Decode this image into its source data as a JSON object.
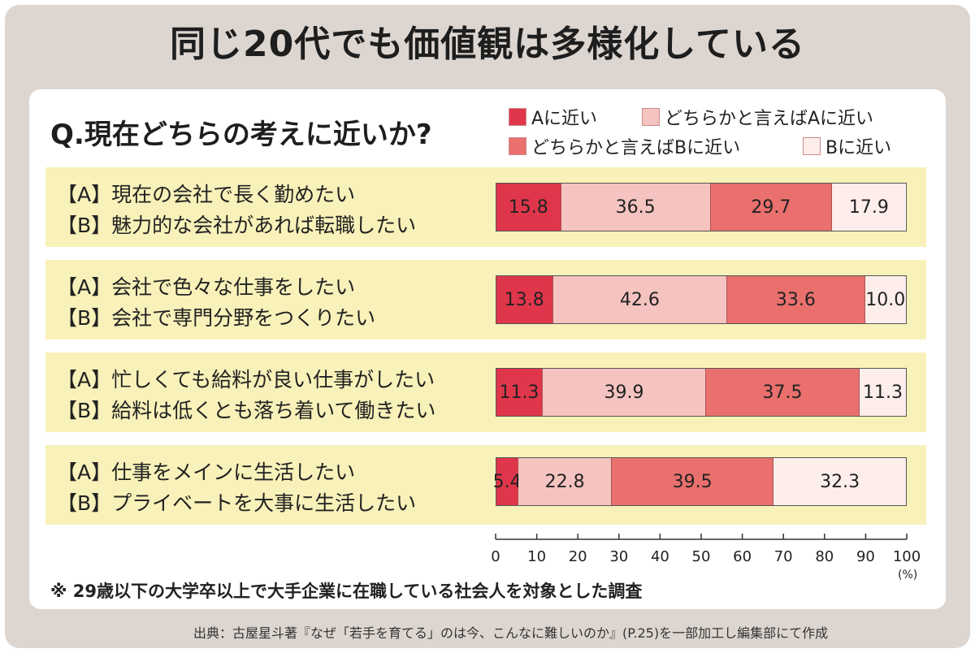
{
  "title": "同じ20代でも価値観は多様化している",
  "question": "Q.現在どちらの考えに近いか?",
  "colors": {
    "a_near": "#e0364b",
    "lean_a": "#f5c3c0",
    "lean_b": "#e9706d",
    "b_near": "#fdeeeb",
    "band": "#f8f1b9",
    "frame": "#ddd6d0"
  },
  "legend": [
    {
      "label": "Aに近い",
      "color_key": "a_near"
    },
    {
      "label": "どちらかと言えばAに近い",
      "color_key": "lean_a"
    },
    {
      "label": "どちらかと言えばBに近い",
      "color_key": "lean_b"
    },
    {
      "label": "Bに近い",
      "color_key": "b_near"
    }
  ],
  "rows": [
    {
      "a": "【A】現在の会社で長く勤めたい",
      "b": "【B】魅力的な会社があれば転職したい"
    },
    {
      "a": "【A】会社で色々な仕事をしたい",
      "b": "【B】会社で専門分野をつくりたい"
    },
    {
      "a": "【A】忙しくても給料が良い仕事がしたい",
      "b": "【B】給料は低くとも落ち着いて働きたい"
    },
    {
      "a": "【A】仕事をメインに生活したい",
      "b": "【B】プライベートを大事に生活したい"
    }
  ],
  "chart_data": {
    "type": "bar",
    "orientation": "horizontal",
    "stacked": true,
    "categories": [
      "現在の会社で長く勤めたい / 魅力的な会社があれば転職したい",
      "会社で色々な仕事をしたい / 会社で専門分野をつくりたい",
      "忙しくても給料が良い仕事がしたい / 給料は低くとも落ち着いて働きたい",
      "仕事をメインに生活したい / プライベートを大事に生活したい"
    ],
    "series": [
      {
        "name": "Aに近い",
        "values": [
          15.8,
          13.8,
          11.3,
          5.4
        ]
      },
      {
        "name": "どちらかと言えばAに近い",
        "values": [
          36.5,
          42.6,
          39.9,
          22.8
        ]
      },
      {
        "name": "どちらかと言えばBに近い",
        "values": [
          29.7,
          33.6,
          37.5,
          39.5
        ]
      },
      {
        "name": "Bに近い",
        "values": [
          17.9,
          10.0,
          11.3,
          32.3
        ]
      }
    ],
    "value_labels": [
      [
        "15.8",
        "36.5",
        "29.7",
        "17.9"
      ],
      [
        "13.8",
        "42.6",
        "33.6",
        "10.0"
      ],
      [
        "11.3",
        "39.9",
        "37.5",
        "11.3"
      ],
      [
        "5.4",
        "22.8",
        "39.5",
        "32.3"
      ]
    ],
    "xlim": [
      0,
      100
    ],
    "xticks": [
      "0",
      "10",
      "20",
      "30",
      "40",
      "50",
      "60",
      "70",
      "80",
      "90",
      "100"
    ],
    "xunit": "(%)",
    "legend_position": "top-right"
  },
  "note": "※ 29歳以下の大学卒以上で大手企業に在職している社会人を対象とした調査",
  "source": "出典：古屋星斗著『なぜ「若手を育てる」のは今、こんなに難しいのか』(P.25)を一部加工し編集部にて作成"
}
